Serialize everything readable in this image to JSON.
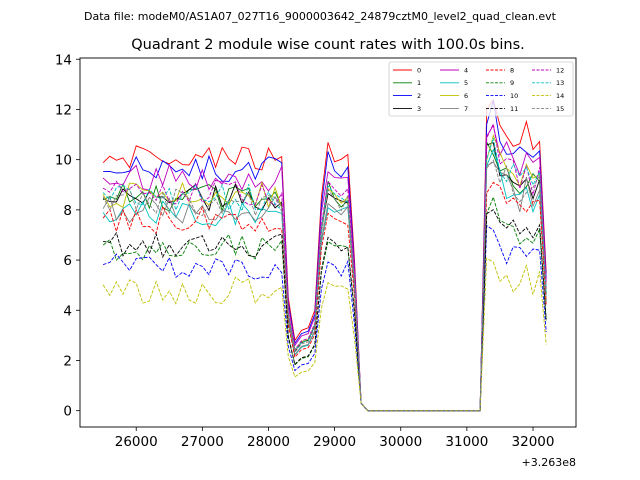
{
  "chart_data": {
    "type": "line",
    "suptitle": "Data file: modeM0/AS1A07_027T16_9000003642_24879cztM0_level2_quad_clean.evt",
    "title": "Quadrant 2 module wise count rates with 100.0s bins.",
    "xlabel": "",
    "ylabel": "",
    "x_offset_label": "+3.263e8",
    "xlim": [
      25150,
      32650
    ],
    "ylim": [
      -0.65,
      14.05
    ],
    "xticks": [
      26000,
      27000,
      28000,
      29000,
      30000,
      31000,
      32000
    ],
    "yticks": [
      0,
      2,
      4,
      6,
      8,
      10,
      12,
      14
    ],
    "xtick_labels": [
      "26000",
      "27000",
      "28000",
      "29000",
      "30000",
      "31000",
      "32000"
    ],
    "ytick_labels": [
      "0",
      "2",
      "4",
      "6",
      "8",
      "10",
      "12",
      "14"
    ],
    "legend_loc": "upper-right",
    "legend_ncol": 4,
    "x_start": 25500,
    "x_step": 100,
    "seg1_count": 28,
    "series": [
      {
        "name": "0",
        "color": "#ff0000",
        "dash": "solid",
        "base": 10.0,
        "amp": 0.25
      },
      {
        "name": "1",
        "color": "#008000",
        "dash": "solid",
        "base": 8.5,
        "amp": 0.25
      },
      {
        "name": "2",
        "color": "#0000ff",
        "dash": "solid",
        "base": 9.6,
        "amp": 0.25
      },
      {
        "name": "3",
        "color": "#000000",
        "dash": "solid",
        "base": 8.5,
        "amp": 0.25
      },
      {
        "name": "4",
        "color": "#bf00bf",
        "dash": "solid",
        "base": 9.3,
        "amp": 0.25
      },
      {
        "name": "5",
        "color": "#00bfbf",
        "dash": "solid",
        "base": 7.9,
        "amp": 0.25
      },
      {
        "name": "6",
        "color": "#bfbf00",
        "dash": "solid",
        "base": 8.6,
        "amp": 0.25
      },
      {
        "name": "7",
        "color": "#808080",
        "dash": "solid",
        "base": 8.0,
        "amp": 0.25
      },
      {
        "name": "8",
        "color": "#ff0000",
        "dash": "dashed",
        "base": 7.6,
        "amp": 0.25
      },
      {
        "name": "9",
        "color": "#008000",
        "dash": "dashed",
        "base": 6.5,
        "amp": 0.25
      },
      {
        "name": "10",
        "color": "#0000ff",
        "dash": "dashed",
        "base": 5.7,
        "amp": 0.25
      },
      {
        "name": "11",
        "color": "#000000",
        "dash": "dashed",
        "base": 6.6,
        "amp": 0.25
      },
      {
        "name": "12",
        "color": "#bf00bf",
        "dash": "dashed",
        "base": 8.7,
        "amp": 0.25
      },
      {
        "name": "13",
        "color": "#00bfbf",
        "dash": "dashed",
        "base": 8.5,
        "amp": 0.25
      },
      {
        "name": "14",
        "color": "#bfbf00",
        "dash": "dashed",
        "base": 4.8,
        "amp": 0.25
      },
      {
        "name": "15",
        "color": "#808080",
        "dash": "dashed",
        "base": 8.3,
        "amp": 0.25
      }
    ]
  }
}
